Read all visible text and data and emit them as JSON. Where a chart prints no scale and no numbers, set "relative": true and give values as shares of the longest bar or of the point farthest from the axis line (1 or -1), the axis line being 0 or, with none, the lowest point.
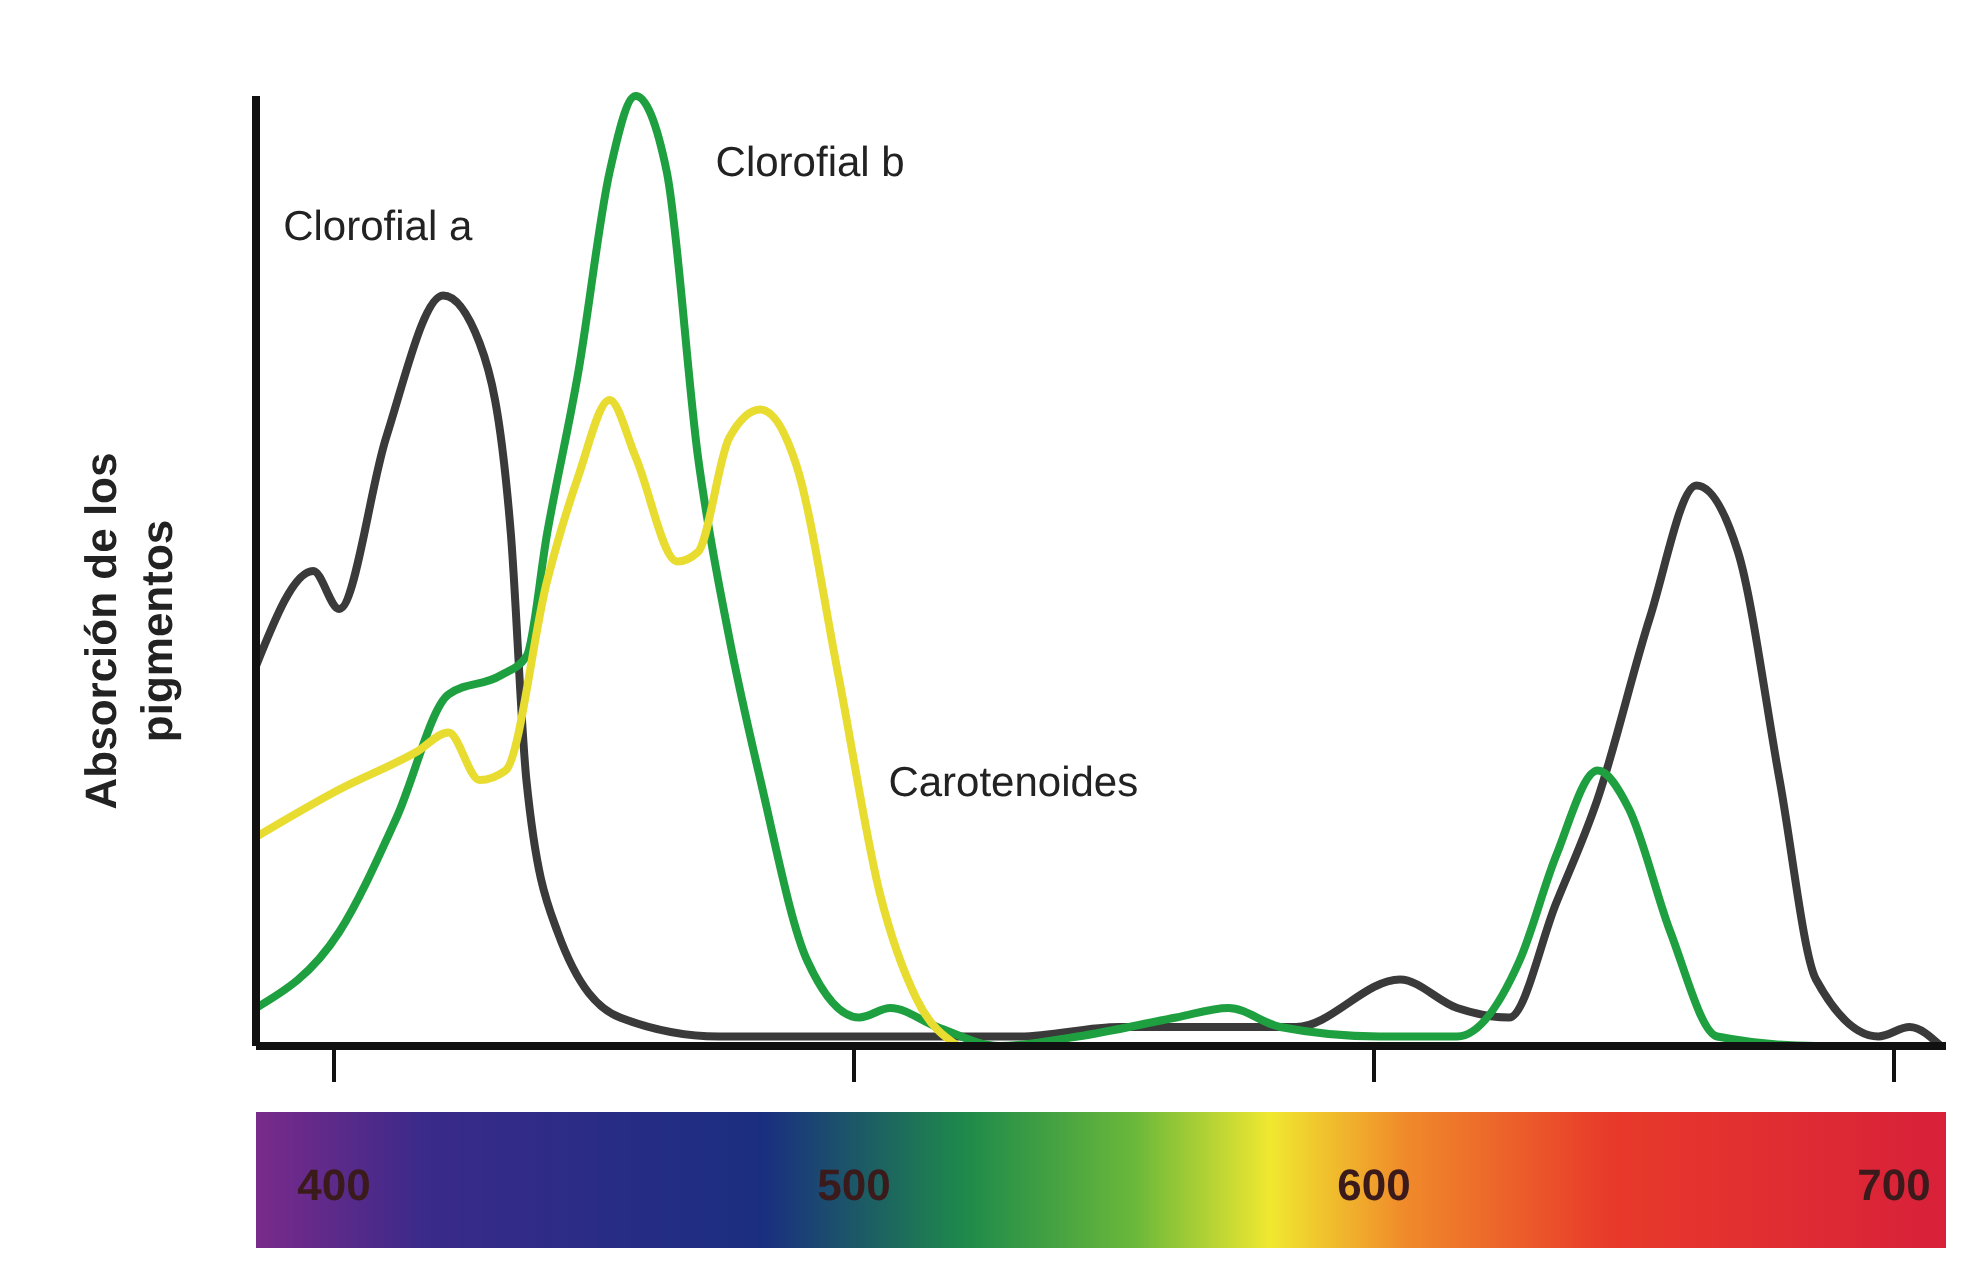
{
  "chart_data": {
    "type": "line",
    "relative": true,
    "ylabel": "Absorción de los pigmentos",
    "xlim": [
      385,
      710
    ],
    "xticks": [
      400,
      500,
      600,
      700
    ],
    "tick_labels": "x",
    "grid": false,
    "marker": "none",
    "line_style": "solid",
    "series": [
      {
        "name": "Clorofial a",
        "color": "#3a3a3a",
        "x": [
          385,
          396,
          401,
          410,
          421,
          428,
          434,
          437,
          443,
          455,
          474,
          501,
          532,
          551,
          570,
          585,
          605,
          616,
          626,
          635,
          643,
          653,
          662,
          670,
          678,
          685,
          697,
          703,
          709
        ],
        "values": [
          0.4,
          0.5,
          0.46,
          0.64,
          0.79,
          0.74,
          0.54,
          0.28,
          0.12,
          0.03,
          0.01,
          0.01,
          0.01,
          0.02,
          0.02,
          0.02,
          0.07,
          0.04,
          0.03,
          0.15,
          0.26,
          0.45,
          0.59,
          0.52,
          0.28,
          0.07,
          0.01,
          0.02,
          0
        ]
      },
      {
        "name": "Clorofial b",
        "color": "#1fa040",
        "x": [
          385,
          401,
          412,
          422,
          432,
          437,
          441,
          447,
          453,
          458,
          464,
          470,
          476,
          482,
          491,
          501,
          507,
          516,
          528,
          543,
          562,
          572,
          582,
          601,
          616,
          628,
          635,
          643,
          649,
          657,
          666,
          685,
          709
        ],
        "values": [
          0.04,
          0.12,
          0.24,
          0.37,
          0.39,
          0.41,
          0.54,
          0.71,
          0.92,
          1.0,
          0.92,
          0.62,
          0.43,
          0.28,
          0.09,
          0.03,
          0.04,
          0.02,
          0,
          0.01,
          0.03,
          0.04,
          0.02,
          0.01,
          0.01,
          0.09,
          0.2,
          0.29,
          0.25,
          0.12,
          0.01,
          0,
          0
        ]
      },
      {
        "name": "Carotenoides",
        "color": "#e8dc30",
        "x": [
          385,
          401,
          416,
          422,
          428,
          433,
          441,
          447,
          453,
          458,
          466,
          470,
          476,
          482,
          489,
          497,
          505,
          512,
          520
        ],
        "values": [
          0.22,
          0.27,
          0.31,
          0.33,
          0.28,
          0.29,
          0.49,
          0.6,
          0.68,
          0.62,
          0.51,
          0.52,
          0.64,
          0.67,
          0.61,
          0.39,
          0.16,
          0.05,
          0
        ]
      }
    ]
  }
}
